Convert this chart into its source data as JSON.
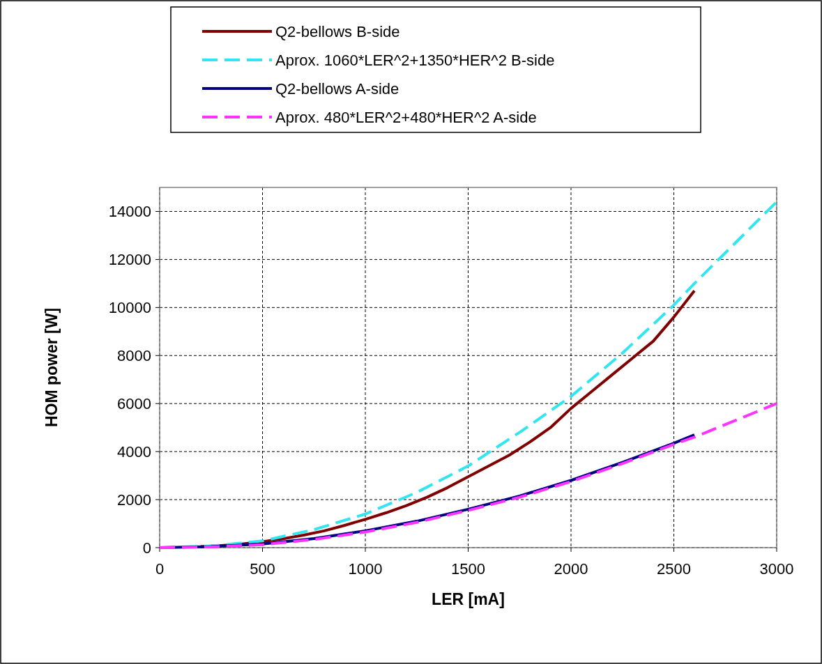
{
  "chart_data": {
    "type": "line",
    "xlabel": "LER [mA]",
    "ylabel": "HOM power [W]",
    "xlim": [
      0,
      3000
    ],
    "xticks": [
      0,
      500,
      1000,
      1500,
      2000,
      2500,
      3000
    ],
    "ylim": [
      0,
      15000
    ],
    "yticks": [
      0,
      2000,
      4000,
      6000,
      8000,
      10000,
      12000,
      14000
    ],
    "grid": true,
    "legend": "top",
    "marker": "none",
    "series": [
      {
        "name": "Q2-bellows B-side",
        "color": "#800000",
        "line_style": "solid",
        "x": [
          200,
          300,
          400,
          500,
          600,
          700,
          800,
          900,
          1000,
          1100,
          1200,
          1300,
          1400,
          1500,
          1600,
          1700,
          1800,
          1900,
          2000,
          2100,
          2200,
          2300,
          2400,
          2500,
          2600
        ],
        "values": [
          40,
          90,
          150,
          250,
          370,
          520,
          700,
          930,
          1180,
          1450,
          1750,
          2100,
          2500,
          2950,
          3400,
          3850,
          4400,
          5000,
          5800,
          6500,
          7200,
          7900,
          8600,
          9600,
          10700
        ]
      },
      {
        "name": "Aprox. 1060*LER^2+1350*HER^2 B-side",
        "color": "#33e5f0",
        "line_style": "dashed",
        "x": [
          0,
          250,
          500,
          750,
          1000,
          1250,
          1500,
          1750,
          2000,
          2250,
          2500,
          2600,
          3000
        ],
        "values": [
          0,
          70,
          280,
          750,
          1400,
          2300,
          3400,
          4800,
          6300,
          8100,
          10100,
          11000,
          14400
        ]
      },
      {
        "name": "Q2-bellows A-side",
        "color": "#000080",
        "line_style": "solid",
        "x": [
          0,
          250,
          500,
          750,
          1000,
          1250,
          1500,
          1750,
          2000,
          2250,
          2500,
          2600
        ],
        "values": [
          0,
          40,
          150,
          380,
          700,
          1100,
          1600,
          2150,
          2800,
          3550,
          4350,
          4700
        ]
      },
      {
        "name": "Aprox. 480*LER^2+480*HER^2 A-side",
        "color": "#ff33ff",
        "line_style": "dashed",
        "x": [
          0,
          250,
          500,
          750,
          1000,
          1250,
          1500,
          1750,
          2000,
          2250,
          2500,
          2600,
          3000
        ],
        "values": [
          0,
          30,
          120,
          340,
          650,
          1050,
          1550,
          2100,
          2750,
          3500,
          4300,
          4600,
          6000
        ]
      }
    ]
  }
}
